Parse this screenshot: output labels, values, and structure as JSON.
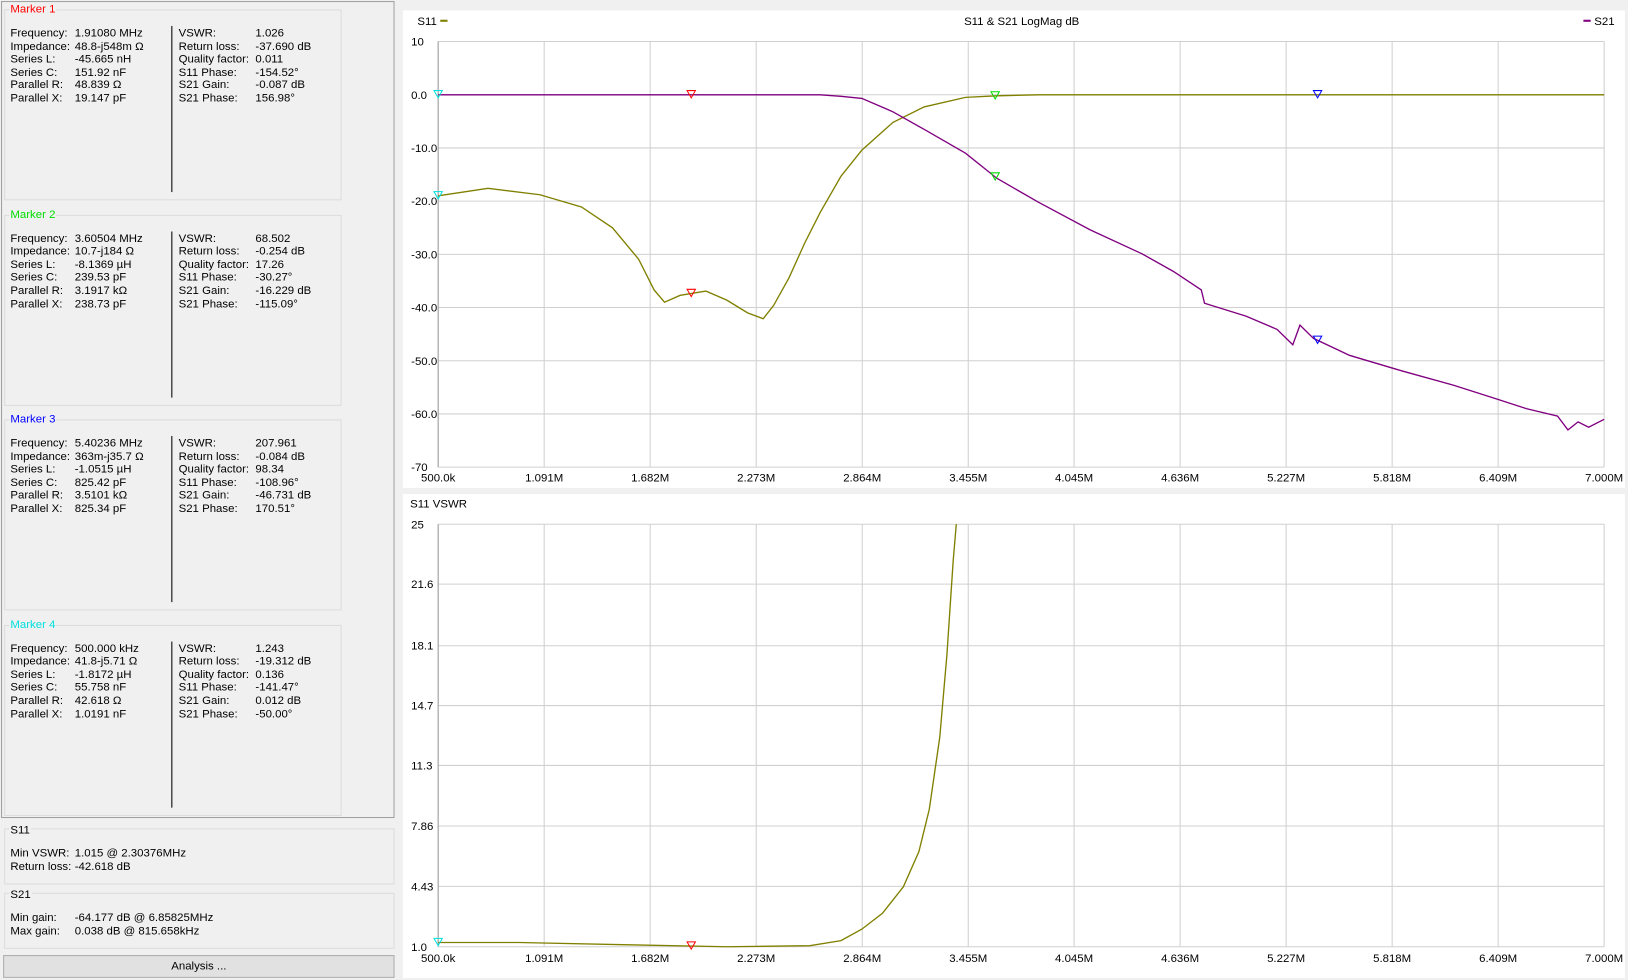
{
  "markers": [
    {
      "title": "Marker 1",
      "color": "#ff0000",
      "left": [
        [
          "Frequency:",
          "1.91080 MHz"
        ],
        [
          "Impedance:",
          "48.8-j548m Ω"
        ],
        [
          "Series L:",
          "-45.665 nH"
        ],
        [
          "Series C:",
          "151.92 nF"
        ],
        [
          "Parallel R:",
          "48.839 Ω"
        ],
        [
          "Parallel X:",
          "19.147 pF"
        ]
      ],
      "right": [
        [
          "VSWR:",
          "1.026"
        ],
        [
          "Return loss:",
          "-37.690 dB"
        ],
        [
          "Quality factor:",
          "0.011"
        ],
        [
          "S11 Phase:",
          "-154.52°"
        ],
        [
          "S21 Gain:",
          "-0.087 dB"
        ],
        [
          "S21 Phase:",
          "156.98°"
        ]
      ]
    },
    {
      "title": "Marker 2",
      "color": "#00dd00",
      "left": [
        [
          "Frequency:",
          "3.60504 MHz"
        ],
        [
          "Impedance:",
          "10.7-j184 Ω"
        ],
        [
          "Series L:",
          "-8.1369 µH"
        ],
        [
          "Series C:",
          "239.53 pF"
        ],
        [
          "Parallel R:",
          "3.1917 kΩ"
        ],
        [
          "Parallel X:",
          "238.73 pF"
        ]
      ],
      "right": [
        [
          "VSWR:",
          "68.502"
        ],
        [
          "Return loss:",
          "-0.254 dB"
        ],
        [
          "Quality factor:",
          "17.26"
        ],
        [
          "S11 Phase:",
          "-30.27°"
        ],
        [
          "S21 Gain:",
          "-16.229 dB"
        ],
        [
          "S21 Phase:",
          "-115.09°"
        ]
      ]
    },
    {
      "title": "Marker 3",
      "color": "#0000ff",
      "left": [
        [
          "Frequency:",
          "5.40236 MHz"
        ],
        [
          "Impedance:",
          "363m-j35.7 Ω"
        ],
        [
          "Series L:",
          "-1.0515 µH"
        ],
        [
          "Series C:",
          "825.42 pF"
        ],
        [
          "Parallel R:",
          "3.5101 kΩ"
        ],
        [
          "Parallel X:",
          "825.34 pF"
        ]
      ],
      "right": [
        [
          "VSWR:",
          "207.961"
        ],
        [
          "Return loss:",
          "-0.084 dB"
        ],
        [
          "Quality factor:",
          "98.34"
        ],
        [
          "S11 Phase:",
          "-108.96°"
        ],
        [
          "S21 Gain:",
          "-46.731 dB"
        ],
        [
          "S21 Phase:",
          "170.51°"
        ]
      ]
    },
    {
      "title": "Marker 4",
      "color": "#00e0e0",
      "left": [
        [
          "Frequency:",
          "500.000 kHz"
        ],
        [
          "Impedance:",
          "41.8-j5.71 Ω"
        ],
        [
          "Series L:",
          "-1.8172 µH"
        ],
        [
          "Series C:",
          "55.758 nF"
        ],
        [
          "Parallel R:",
          "42.618 Ω"
        ],
        [
          "Parallel X:",
          "1.0191 nF"
        ]
      ],
      "right": [
        [
          "VSWR:",
          "1.243"
        ],
        [
          "Return loss:",
          "-19.312 dB"
        ],
        [
          "Quality factor:",
          "0.136"
        ],
        [
          "S11 Phase:",
          "-141.47°"
        ],
        [
          "S21 Gain:",
          "0.012 dB"
        ],
        [
          "S21 Phase:",
          "-50.00°"
        ]
      ]
    }
  ],
  "summaries": [
    {
      "title": "S11",
      "rows": [
        [
          "Min VSWR:",
          "1.015 @ 2.30376MHz"
        ],
        [
          "Return loss:",
          "-42.618 dB"
        ]
      ]
    },
    {
      "title": "S21",
      "rows": [
        [
          "Min gain:",
          "-64.177 dB @ 6.85825MHz"
        ],
        [
          "Max gain:",
          "0.038 dB @ 815.658kHz"
        ]
      ]
    }
  ],
  "analysis_button": "Analysis ...",
  "chart_data": [
    {
      "type": "line",
      "title": "S11 & S21 LogMag dB",
      "grid": true,
      "x": [
        500000,
        778000,
        1067000,
        1299000,
        1472000,
        1617000,
        1704000,
        1762000,
        1849000,
        1993000,
        2109000,
        2225000,
        2312000,
        2370000,
        2456000,
        2543000,
        2630000,
        2746000,
        2862000,
        3035000,
        3209000,
        3440000,
        3614000,
        3846000,
        4135000,
        4424000,
        4598000,
        4754000,
        4772000,
        5003000,
        5177000,
        5264000,
        5304000,
        5380000,
        5582000,
        5871000,
        6161000,
        6392000,
        6566000,
        6740000,
        6798000,
        6855000,
        6913000,
        7000000
      ],
      "series": [
        {
          "name": "S11",
          "color": "#808000",
          "values": [
            -19,
            -17.6,
            -18.8,
            -21.1,
            -25,
            -30.9,
            -36.7,
            -39,
            -37.7,
            -36.9,
            -38.6,
            -41,
            -42.1,
            -39.6,
            -34.4,
            -27.9,
            -22.1,
            -15.3,
            -10.4,
            -5.2,
            -2.3,
            -0.5,
            -0.2,
            0,
            0,
            0,
            0,
            0,
            0,
            0,
            0,
            0,
            0,
            0,
            0,
            0,
            0,
            0,
            0,
            0,
            0,
            0,
            0,
            0
          ]
        },
        {
          "name": "S21",
          "color": "#800080",
          "values": [
            0,
            0,
            0,
            0,
            0,
            0,
            0,
            0,
            0,
            0,
            0,
            0,
            0,
            0,
            0,
            0,
            0,
            -0.3,
            -0.7,
            -3.2,
            -6.5,
            -11,
            -15.7,
            -20.2,
            -25.4,
            -29.9,
            -33.2,
            -36.7,
            -39.2,
            -41.6,
            -44.1,
            -47,
            -43.3,
            -45.8,
            -49,
            -51.9,
            -54.6,
            -57.1,
            -59,
            -60.4,
            -63,
            -61.5,
            -62.5,
            -61
          ]
        }
      ],
      "markers": [
        {
          "x": 1910800,
          "color": "#ff0000"
        },
        {
          "x": 3605040,
          "color": "#00dd00"
        },
        {
          "x": 5402360,
          "color": "#0000ff"
        },
        {
          "x": 500000,
          "color": "#00e0e0"
        }
      ],
      "xlim": [
        500000,
        7000000
      ],
      "xticks": [
        {
          "value": 500000,
          "label": "500.0k"
        },
        {
          "value": 1091000,
          "label": "1.091M"
        },
        {
          "value": 1682000,
          "label": "1.682M"
        },
        {
          "value": 2273000,
          "label": "2.273M"
        },
        {
          "value": 2864000,
          "label": "2.864M"
        },
        {
          "value": 3455000,
          "label": "3.455M"
        },
        {
          "value": 4045000,
          "label": "4.045M"
        },
        {
          "value": 4636000,
          "label": "4.636M"
        },
        {
          "value": 5227000,
          "label": "5.227M"
        },
        {
          "value": 5818000,
          "label": "5.818M"
        },
        {
          "value": 6409000,
          "label": "6.409M"
        },
        {
          "value": 7000000,
          "label": "7.000M"
        }
      ],
      "ylim": [
        -70,
        10
      ],
      "yticks": [
        10,
        {
          "value": 0,
          "label": "0.0"
        },
        {
          "value": -10,
          "label": "-10.0"
        },
        {
          "value": -20,
          "label": "-20.0"
        },
        {
          "value": -30,
          "label": "-30.0"
        },
        {
          "value": -40,
          "label": "-40.0"
        },
        {
          "value": -50,
          "label": "-50.0"
        },
        {
          "value": -60,
          "label": "-60.0"
        },
        -70
      ]
    },
    {
      "type": "line",
      "title": "S11 VSWR",
      "grid": true,
      "x": [
        500000,
        951000,
        1530000,
        2109000,
        2572000,
        2746000,
        2862000,
        2977000,
        3093000,
        3180000,
        3238000,
        3296000,
        3336000,
        3371000,
        3388000
      ],
      "series": [
        {
          "color": "#808000",
          "values": [
            1.24,
            1.24,
            1.12,
            1.0,
            1.06,
            1.35,
            2.0,
            2.9,
            4.4,
            6.4,
            8.8,
            12.9,
            17.6,
            22.9,
            25
          ]
        }
      ],
      "markers": [
        {
          "x": 1910800,
          "color": "#ff0000"
        },
        {
          "x": 500000,
          "color": "#00e0e0"
        }
      ],
      "xlim": [
        500000,
        7000000
      ],
      "xticks": [
        {
          "value": 500000,
          "label": "500.0k"
        },
        {
          "value": 1091000,
          "label": "1.091M"
        },
        {
          "value": 1682000,
          "label": "1.682M"
        },
        {
          "value": 2273000,
          "label": "2.273M"
        },
        {
          "value": 2864000,
          "label": "2.864M"
        },
        {
          "value": 3455000,
          "label": "3.455M"
        },
        {
          "value": 4045000,
          "label": "4.045M"
        },
        {
          "value": 4636000,
          "label": "4.636M"
        },
        {
          "value": 5227000,
          "label": "5.227M"
        },
        {
          "value": 5818000,
          "label": "5.818M"
        },
        {
          "value": 6409000,
          "label": "6.409M"
        },
        {
          "value": 7000000,
          "label": "7.000M"
        }
      ],
      "ylim": [
        1,
        25
      ],
      "yticks": [
        25,
        21.6,
        18.1,
        14.7,
        11.3,
        7.86,
        4.43,
        {
          "value": 1,
          "label": "1.0"
        }
      ]
    }
  ]
}
